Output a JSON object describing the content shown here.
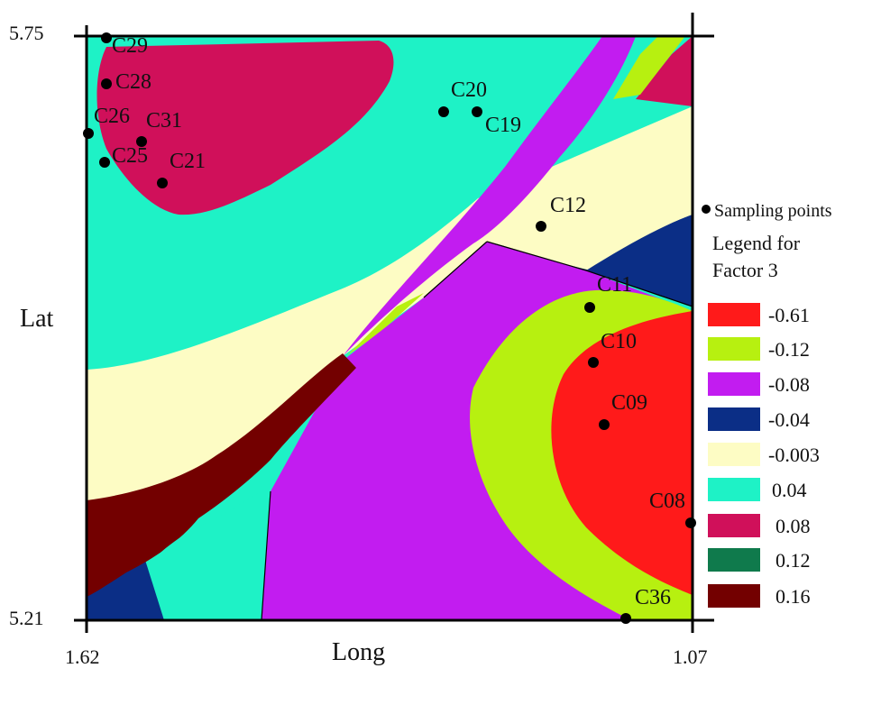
{
  "map": {
    "axes": {
      "x_label": "Long",
      "y_label": "Lat",
      "x_ticks": [
        "1.62",
        "1.07"
      ],
      "y_ticks": [
        "5.75",
        "5.21"
      ]
    },
    "sampling_points": [
      {
        "id": "C29",
        "label": "C29"
      },
      {
        "id": "C28",
        "label": "C28"
      },
      {
        "id": "C26",
        "label": "C26"
      },
      {
        "id": "C31",
        "label": "C31"
      },
      {
        "id": "C25",
        "label": "C25"
      },
      {
        "id": "C21",
        "label": "C21"
      },
      {
        "id": "C20",
        "label": "C20"
      },
      {
        "id": "C19",
        "label": "C19"
      },
      {
        "id": "C12",
        "label": "C12"
      },
      {
        "id": "C11",
        "label": "C11"
      },
      {
        "id": "C10",
        "label": "C10"
      },
      {
        "id": "C09",
        "label": "C09"
      },
      {
        "id": "C08",
        "label": "C08"
      },
      {
        "id": "C36",
        "label": "C36"
      }
    ],
    "zone_colors": {
      "-0.61": "#ff1a1a",
      "-0.12": "#b7f010",
      "-0.08": "#c21cf0",
      "-0.04": "#0b2e86",
      "-0.003": "#fdfcc4",
      "0.04": "#1ef2c6",
      "0.08": "#d0105a",
      "0.12": "#0f7a4c",
      "0.16": "#730000"
    }
  },
  "legend": {
    "sampling_label": "Sampling points",
    "title_line1": "Legend for",
    "title_line2": "Factor 3",
    "entries": [
      {
        "label": "-0.61",
        "color": "#ff1a1a"
      },
      {
        "label": "-0.12",
        "color": "#b7f010"
      },
      {
        "label": "-0.08",
        "color": "#c21cf0"
      },
      {
        "label": "-0.04",
        "color": "#0b2e86"
      },
      {
        "label": "-0.003",
        "color": "#fdfcc4"
      },
      {
        "label": "0.04",
        "color": "#1ef2c6"
      },
      {
        "label": "0.08",
        "color": "#d0105a"
      },
      {
        "label": "0.12",
        "color": "#0f7a4c"
      },
      {
        "label": "0.16",
        "color": "#730000"
      }
    ]
  }
}
